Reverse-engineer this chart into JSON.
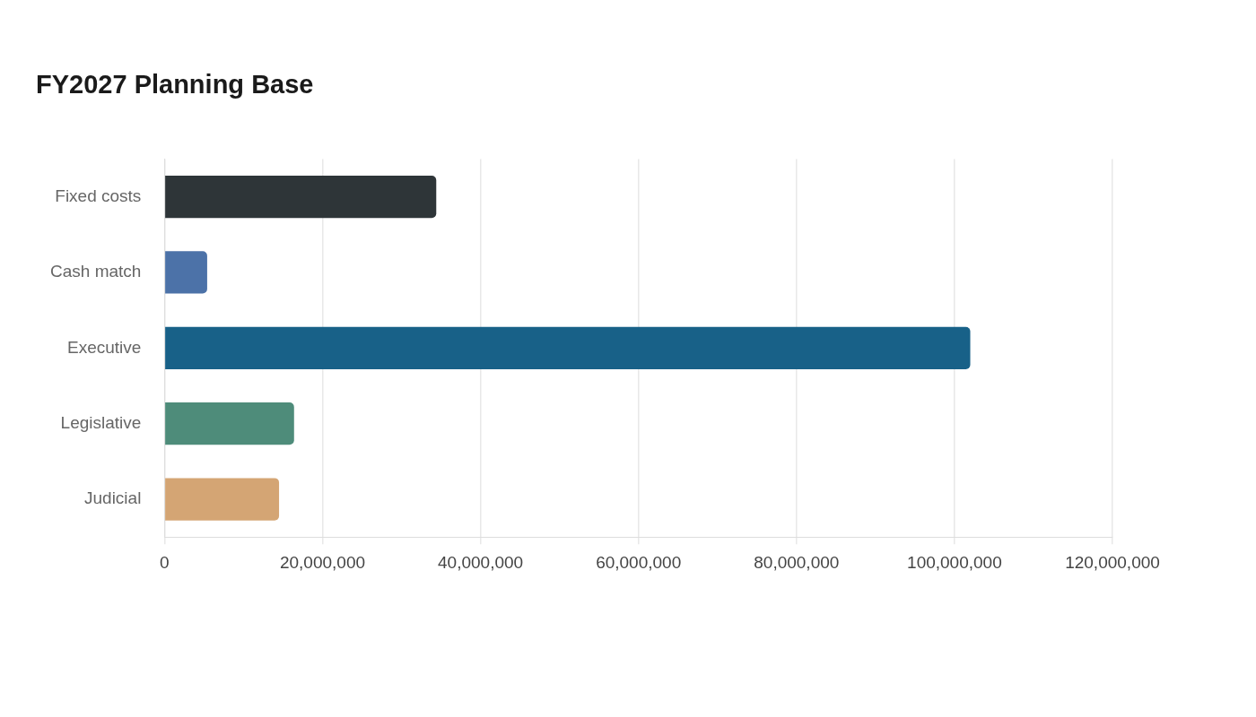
{
  "chart_data": {
    "type": "bar",
    "title": "FY2027 Planning Base",
    "orientation": "horizontal",
    "categories": [
      "Fixed costs",
      "Cash match",
      "Executive",
      "Legislative",
      "Judicial"
    ],
    "values": [
      34400000,
      5400000,
      102000000,
      16400000,
      14500000
    ],
    "colors": [
      "#2e3538",
      "#4c72a8",
      "#186188",
      "#4e8c7a",
      "#d4a574"
    ],
    "xlim": [
      0,
      120000000
    ],
    "xticks": [
      0,
      {
        "value": 20000000,
        "label": "20,000,000"
      },
      {
        "value": 40000000,
        "label": "40,000,000"
      },
      {
        "value": 60000000,
        "label": "60,000,000"
      },
      {
        "value": 80000000,
        "label": "80,000,000"
      },
      {
        "value": 100000000,
        "label": "100,000,000"
      },
      {
        "value": 120000000,
        "label": "120,000,000"
      }
    ],
    "grid": "x",
    "legend": false
  }
}
